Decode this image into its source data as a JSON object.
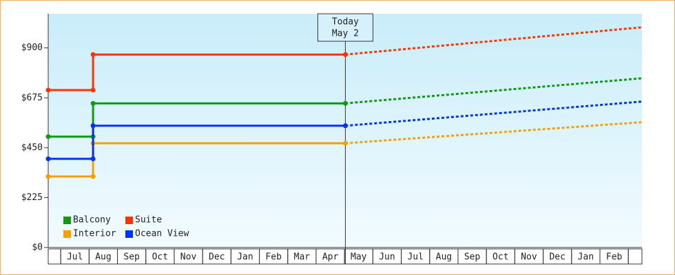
{
  "chart_data": {
    "type": "line",
    "today": {
      "label": [
        "Today",
        "May 2"
      ],
      "x": 11.03
    },
    "categories": [
      null,
      "Jul",
      "Aug",
      "Sep",
      "Oct",
      "Nov",
      "Dec",
      "Jan",
      "Feb",
      "Mar",
      "Apr",
      "May",
      "Jun",
      "Jul",
      "Aug",
      "Sep",
      "Oct",
      "Nov",
      "Dec",
      "Jan",
      "Feb",
      null
    ],
    "xlim": [
      0.56,
      21.48
    ],
    "ylim": [
      0,
      1054
    ],
    "yticks": [
      {
        "value": 0,
        "label": "$0"
      },
      {
        "value": 225,
        "label": "$225"
      },
      {
        "value": 450,
        "label": "$450"
      },
      {
        "value": 675,
        "label": "$675"
      },
      {
        "value": 900,
        "label": "$900"
      }
    ],
    "legend": "bottom-left",
    "series": [
      {
        "name": "Balcony",
        "color": "#119911",
        "x": [
          0.56,
          2.14,
          2.14,
          11.03,
          21.48
        ],
        "values": [
          500,
          500,
          650,
          650,
          763
        ]
      },
      {
        "name": "Suite",
        "color": "#ff3300",
        "x": [
          0.56,
          2.14,
          2.14,
          11.03,
          21.48
        ],
        "values": [
          710,
          710,
          870,
          870,
          993
        ]
      },
      {
        "name": "Interior",
        "color": "#f5a000",
        "x": [
          0.56,
          2.14,
          2.14,
          11.03,
          21.48
        ],
        "values": [
          320,
          320,
          470,
          470,
          565
        ]
      },
      {
        "name": "Ocean View",
        "color": "#0033ee",
        "x": [
          0.56,
          2.14,
          2.14,
          11.03,
          21.48
        ],
        "values": [
          400,
          400,
          549,
          549,
          658
        ]
      }
    ]
  }
}
